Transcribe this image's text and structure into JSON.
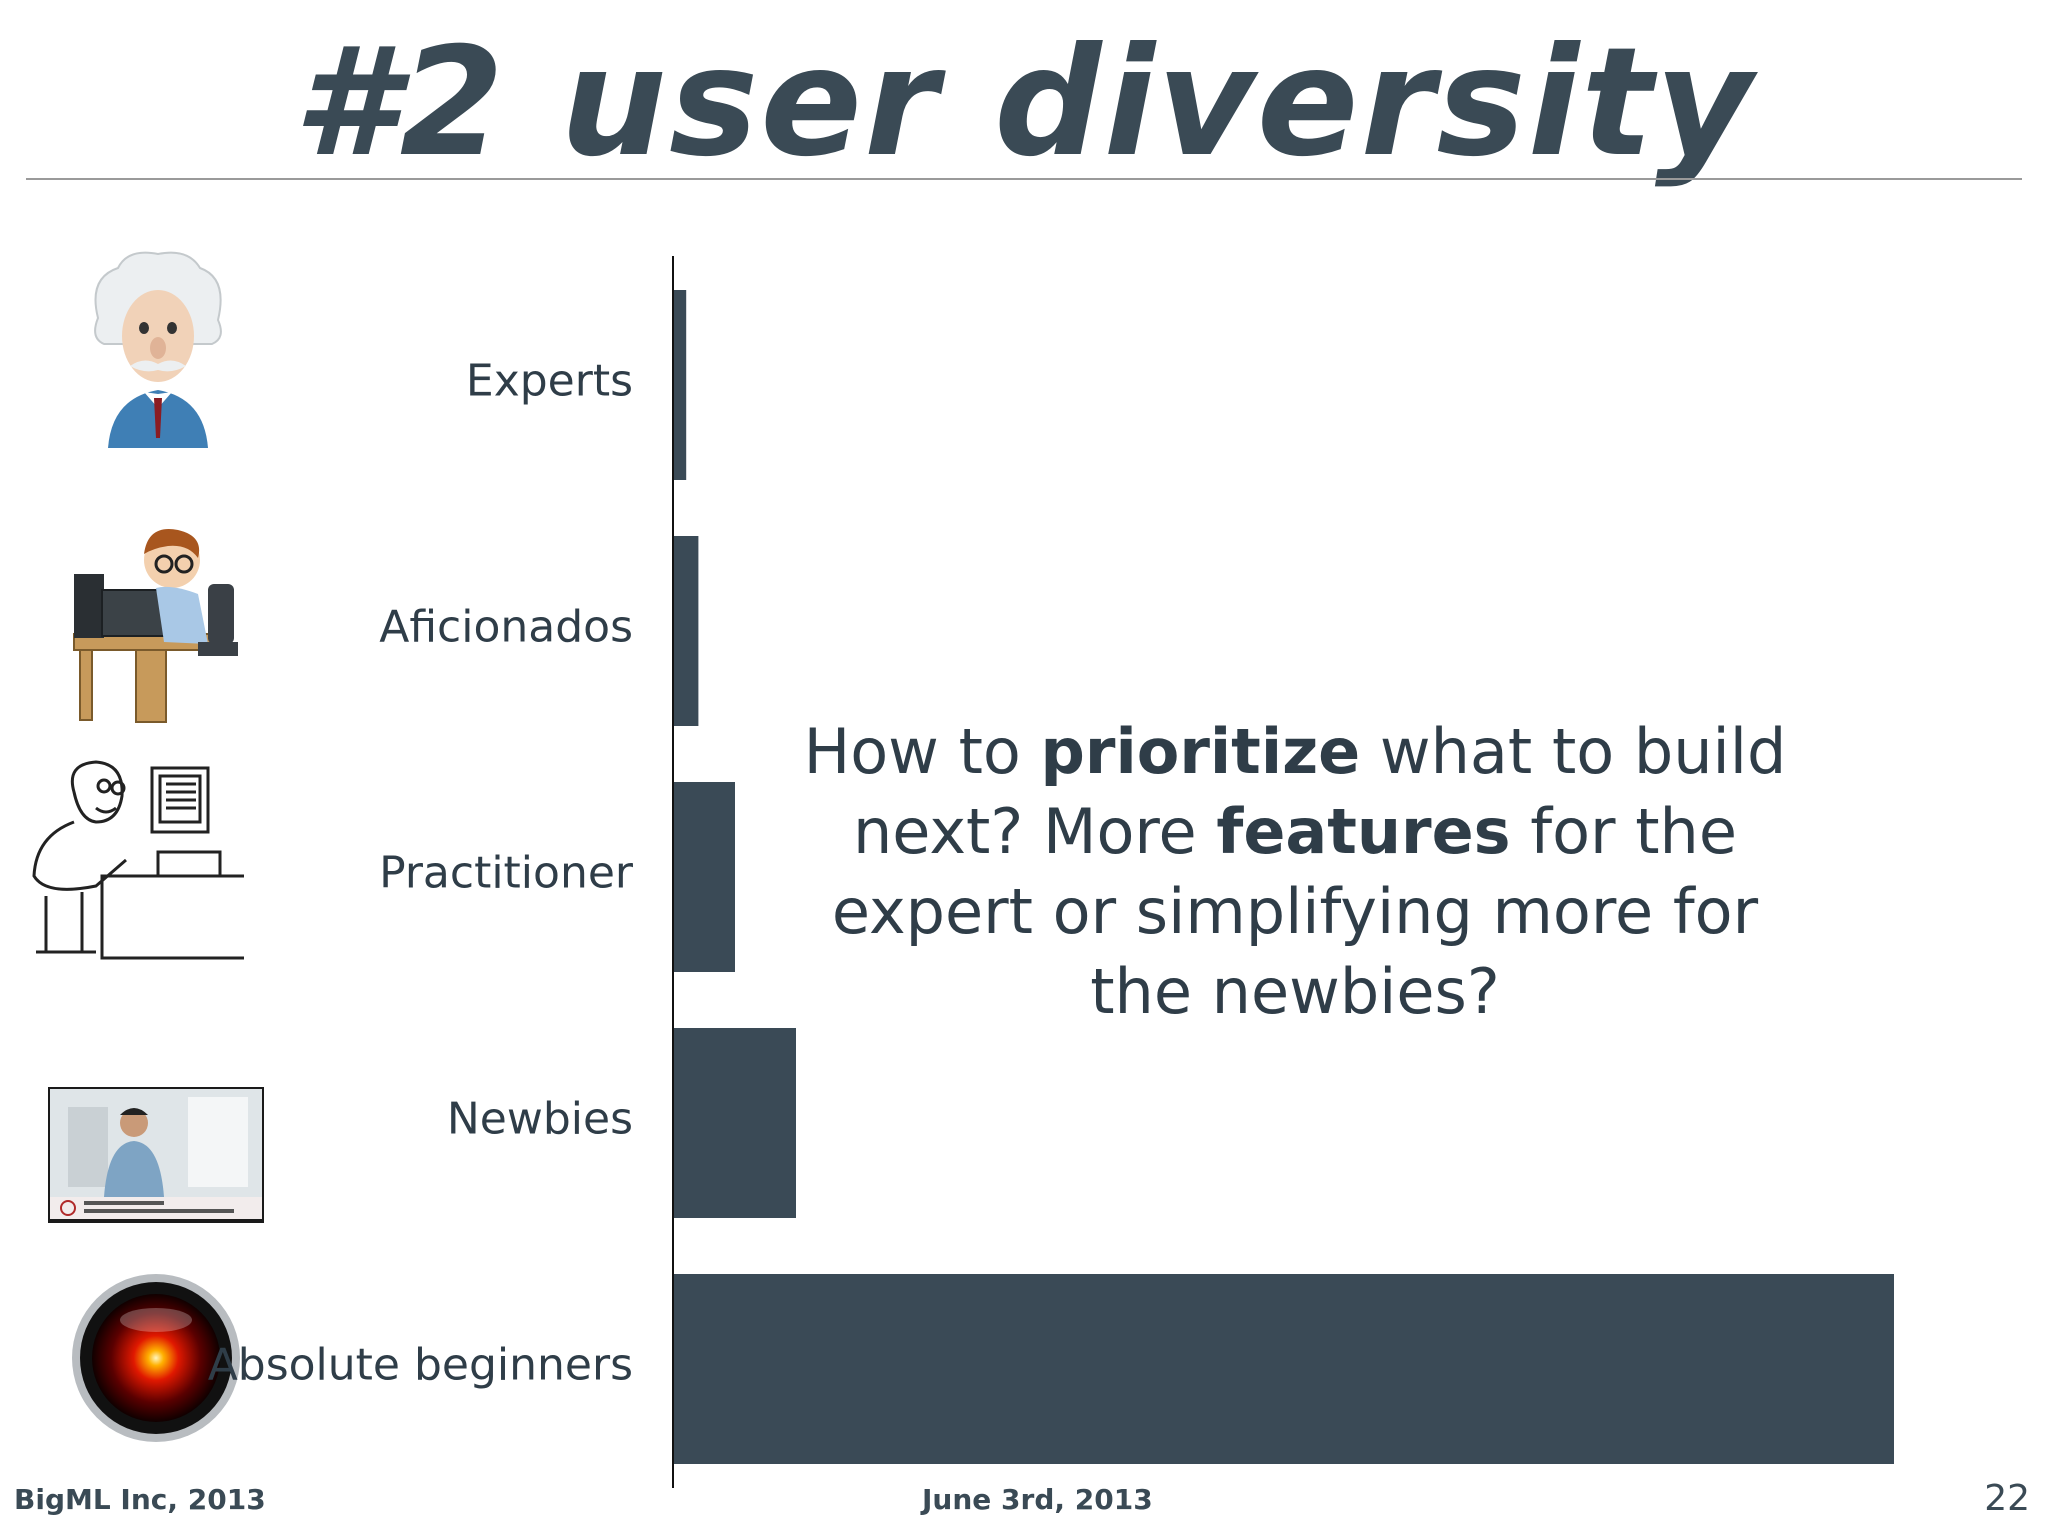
{
  "slide": {
    "title": "#2 user diversity",
    "question": {
      "part1": "How to ",
      "bold1": "prioritize",
      "part2": " what to build next? More ",
      "bold2": "features",
      "part3": " for the expert or simplifying more for the newbies?"
    },
    "footer_left": "BigML Inc, 2013",
    "footer_center": "June 3rd, 2013",
    "page_number": "22"
  },
  "images": {
    "experts": "einstein-cartoon-avatar",
    "aficionados": "cartoon-programmer-at-desk",
    "practitioner": "line-drawing-man-at-computer",
    "newbies": "video-lecture-screenshot",
    "absolute_beginners": "hal-9000-red-eye"
  },
  "chart_data": {
    "type": "bar",
    "orientation": "horizontal",
    "categories": [
      "Experts",
      "Aficionados",
      "Practitioner",
      "Newbies",
      "Absolute beginners"
    ],
    "values": [
      1,
      2,
      5,
      10,
      100
    ],
    "title": "",
    "xlabel": "",
    "ylabel": "",
    "xlim": [
      0,
      100
    ],
    "grid": false,
    "bar_color": "#3a4a56"
  }
}
